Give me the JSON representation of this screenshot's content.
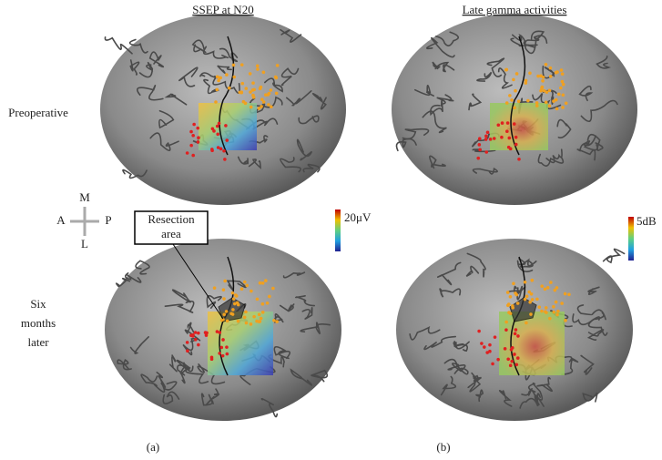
{
  "columns": [
    {
      "title": "SSEP at N20",
      "caption": "(a)",
      "scale_label": "20μV"
    },
    {
      "title": "Late gamma activities",
      "caption": "(b)",
      "scale_label": "5dB"
    }
  ],
  "rows": [
    {
      "label": [
        "Preoperative"
      ]
    },
    {
      "label": [
        "Six",
        "months",
        "later"
      ]
    }
  ],
  "compass": {
    "top": "M",
    "left": "A",
    "right": "P",
    "bottom": "L"
  },
  "annotation": [
    "Resection",
    "area"
  ]
}
